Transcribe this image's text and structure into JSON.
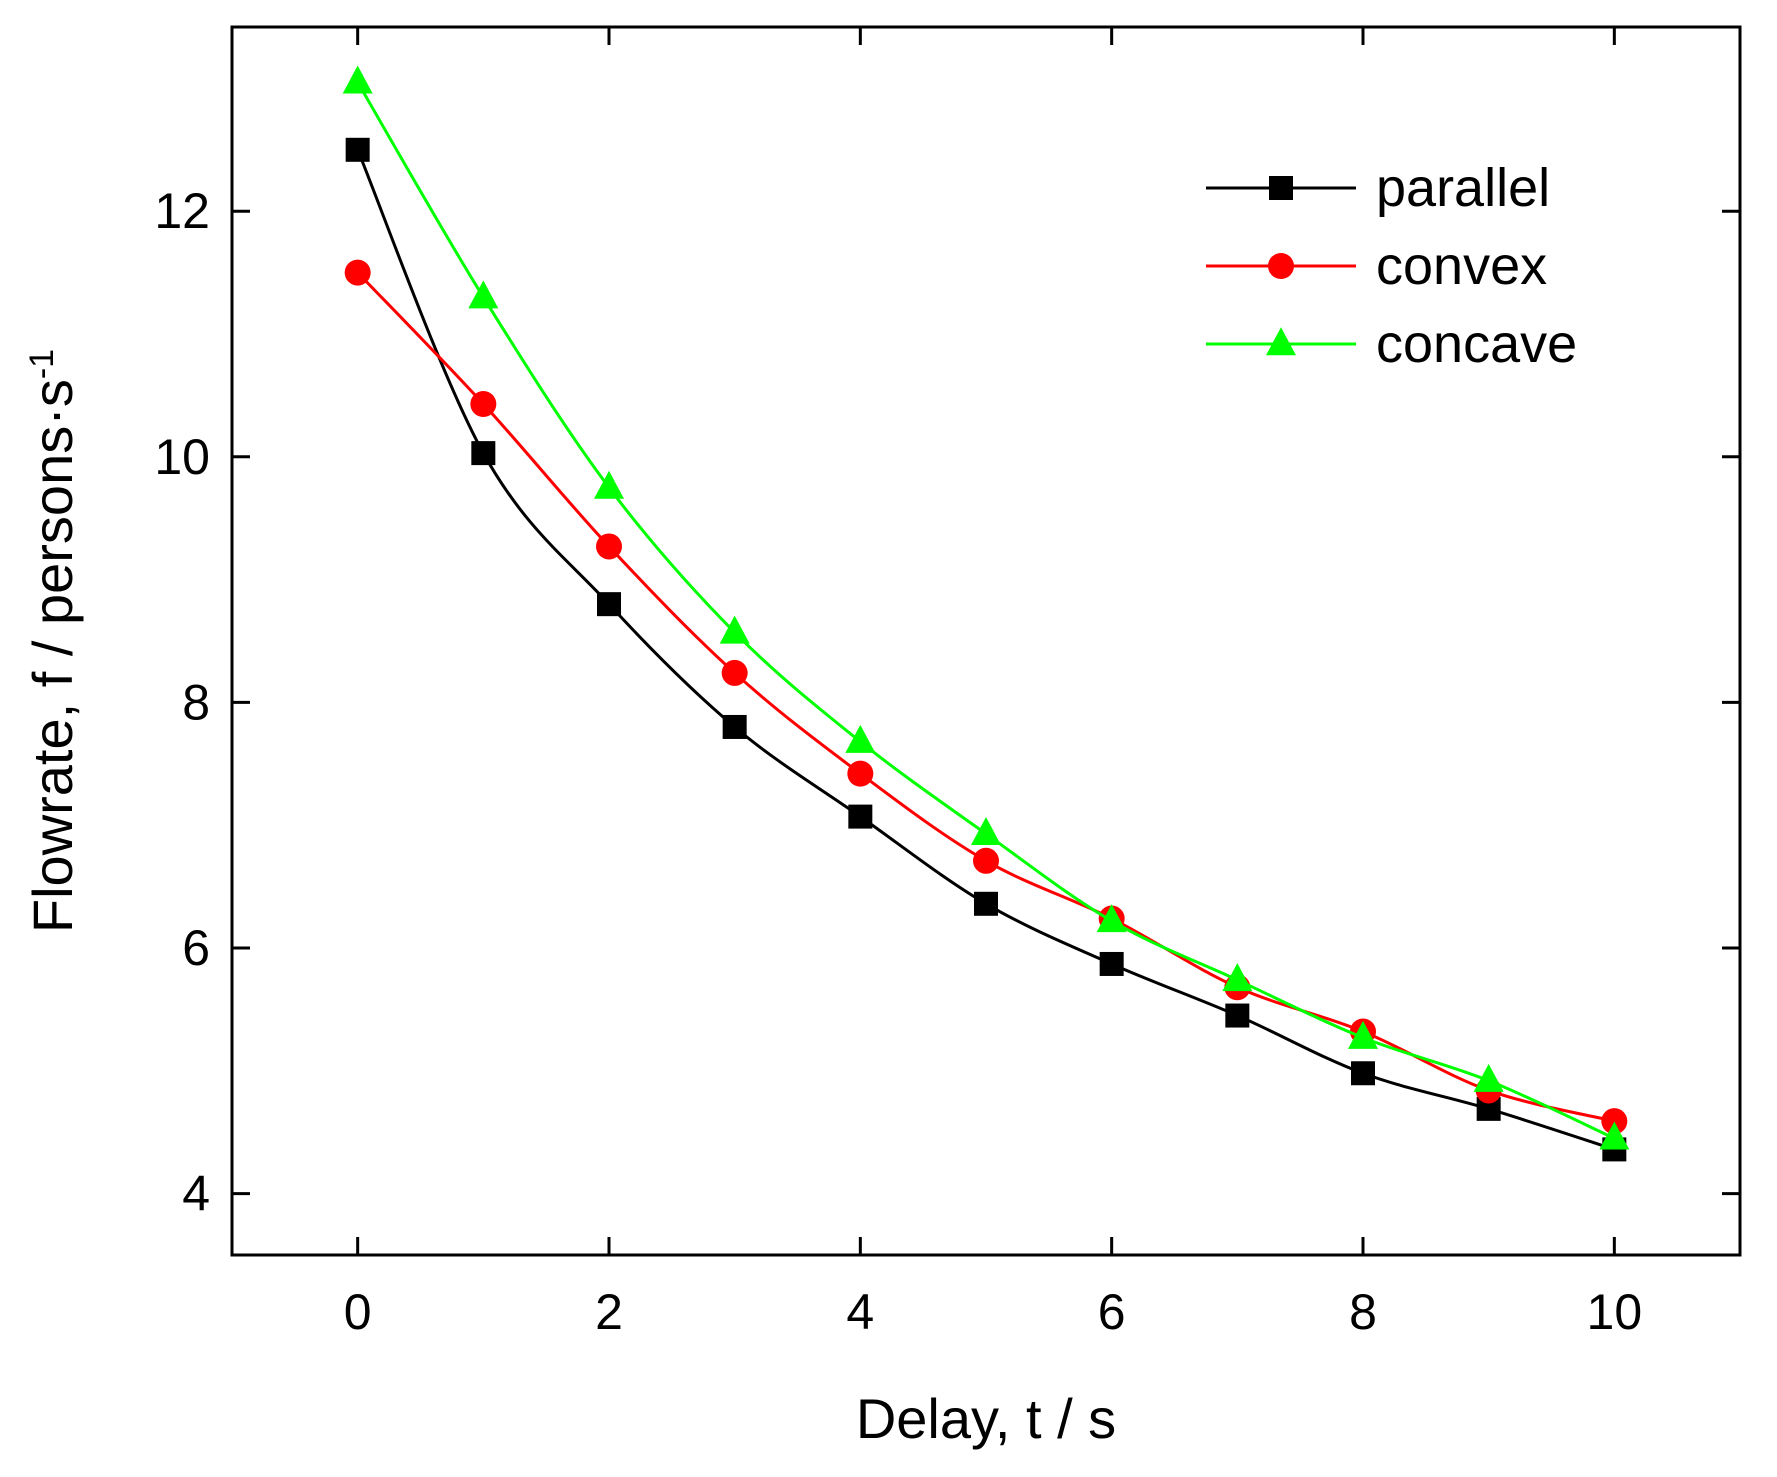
{
  "chart_data": {
    "type": "line",
    "title": "",
    "xlabel": "Delay, t / s",
    "ylabel": {
      "main": "Flowrate, f / persons·s",
      "superscript": "-1"
    },
    "xlim": [
      -1,
      11
    ],
    "ylim": [
      3.5,
      13.5
    ],
    "xticks": [
      0,
      2,
      4,
      6,
      8,
      10
    ],
    "yticks": [
      4,
      6,
      8,
      10,
      12
    ],
    "grid": false,
    "legend_position": "top-right",
    "x": [
      0,
      1,
      2,
      3,
      4,
      5,
      6,
      7,
      8,
      9,
      10
    ],
    "series": [
      {
        "name": "parallel",
        "color": "#000000",
        "marker": "square",
        "values": [
          12.5,
          10.03,
          8.8,
          7.8,
          7.07,
          6.36,
          5.87,
          5.45,
          4.98,
          4.69,
          4.36
        ]
      },
      {
        "name": "convex",
        "color": "#ff0000",
        "marker": "circle",
        "values": [
          11.5,
          10.43,
          9.27,
          8.24,
          7.42,
          6.71,
          6.24,
          5.68,
          5.32,
          4.84,
          4.59
        ]
      },
      {
        "name": "concave",
        "color": "#00ff00",
        "marker": "triangle",
        "values": [
          13.05,
          11.3,
          9.75,
          8.57,
          7.68,
          6.93,
          6.22,
          5.74,
          5.27,
          4.92,
          4.45
        ]
      }
    ]
  }
}
